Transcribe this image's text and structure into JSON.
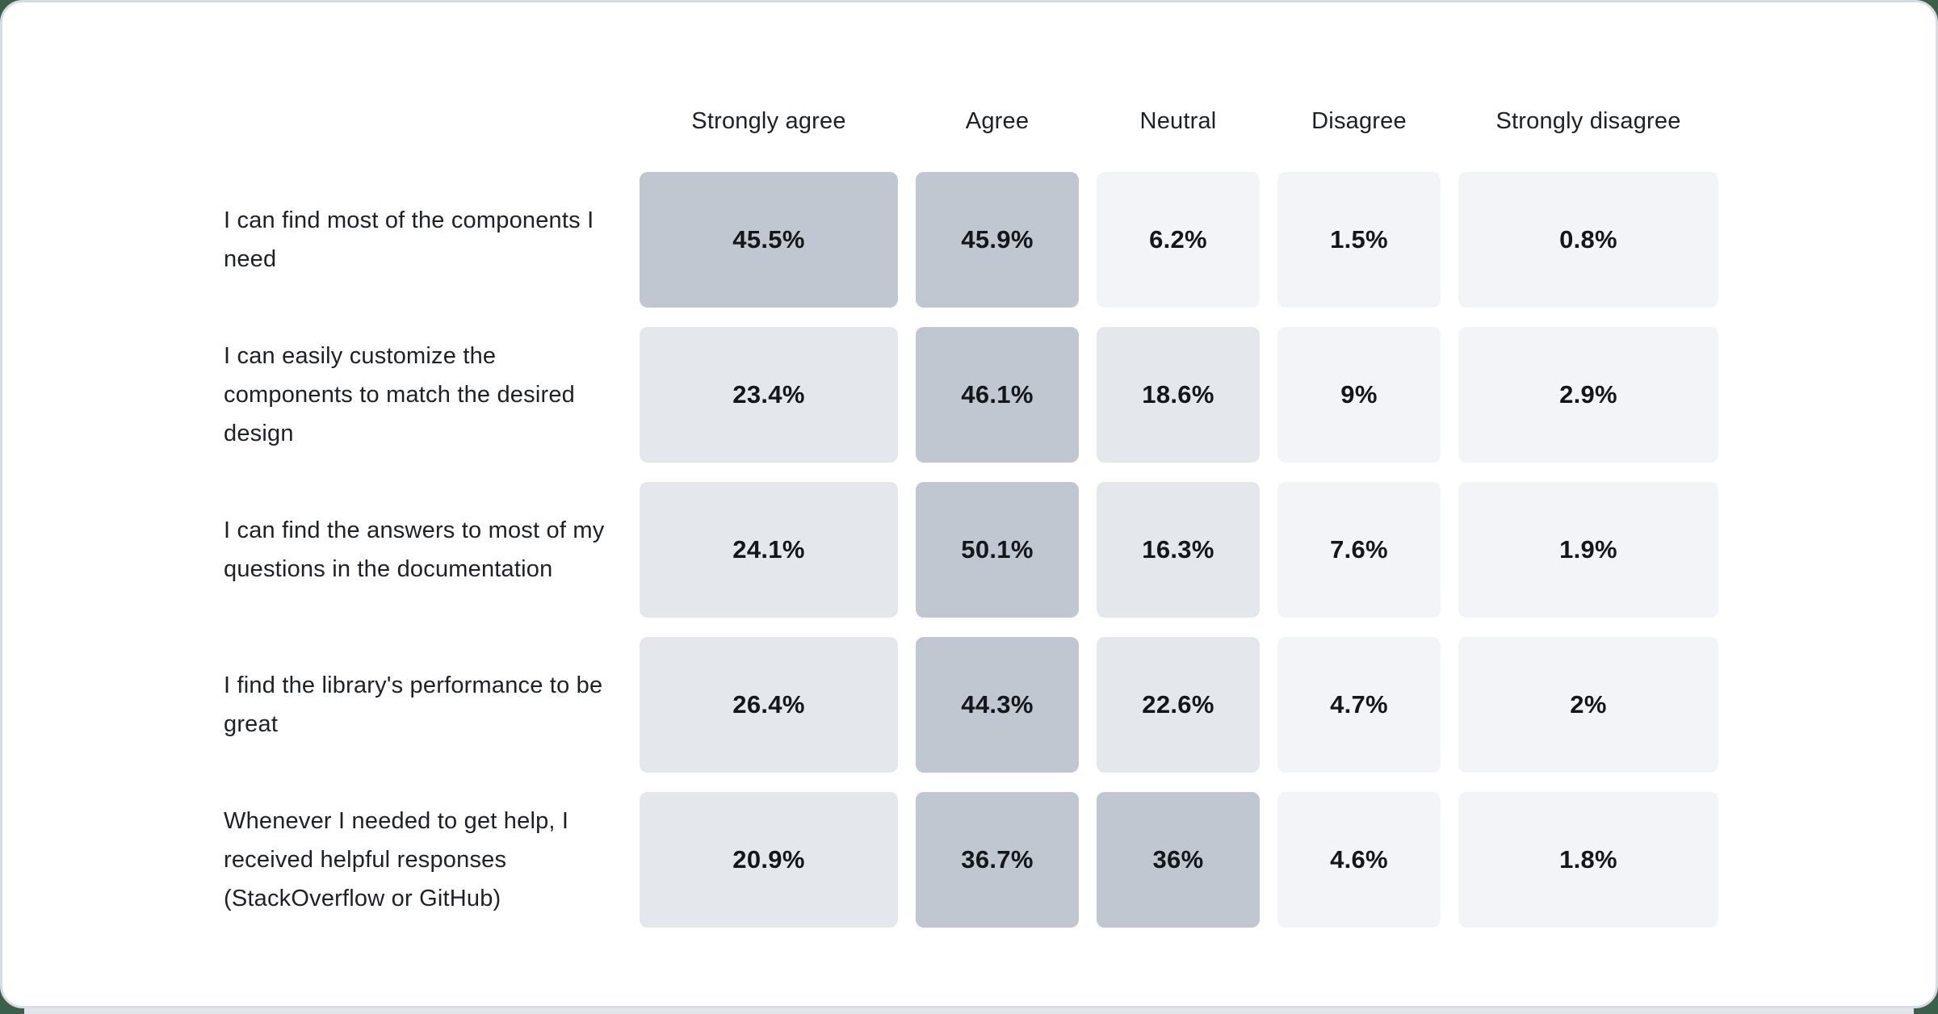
{
  "page": {
    "background_color": "#3a5f4a",
    "card_background": "#ffffff",
    "card_border_color": "#d7dce2",
    "bottom_strip_color": "#e2e5e9"
  },
  "chart_data": {
    "type": "heatmap",
    "title": "",
    "columns": [
      "Strongly agree",
      "Agree",
      "Neutral",
      "Disagree",
      "Strongly disagree"
    ],
    "rows": [
      {
        "label": "I can find most of the components I need",
        "values": [
          45.5,
          45.9,
          6.2,
          1.5,
          0.8
        ]
      },
      {
        "label": "I can easily customize the components to match the desired design",
        "values": [
          23.4,
          46.1,
          18.6,
          9,
          2.9
        ]
      },
      {
        "label": "I can find the answers to most of my questions in the documentation",
        "values": [
          24.1,
          50.1,
          16.3,
          7.6,
          1.9
        ]
      },
      {
        "label": "I find the library's performance to be great",
        "values": [
          26.4,
          44.3,
          22.6,
          4.7,
          2
        ]
      },
      {
        "label": "Whenever I needed to get help, I received helpful responses (StackOverflow or GitHub)",
        "values": [
          20.9,
          36.7,
          36,
          4.6,
          1.8
        ]
      }
    ],
    "value_suffix": "%",
    "color_scale": [
      {
        "max": 12,
        "color": "#f2f4f8"
      },
      {
        "max": 30,
        "color": "#e4e7ec"
      },
      {
        "max": 100,
        "color": "#c1c7d0"
      }
    ],
    "legend_position": "none",
    "grid": false
  }
}
